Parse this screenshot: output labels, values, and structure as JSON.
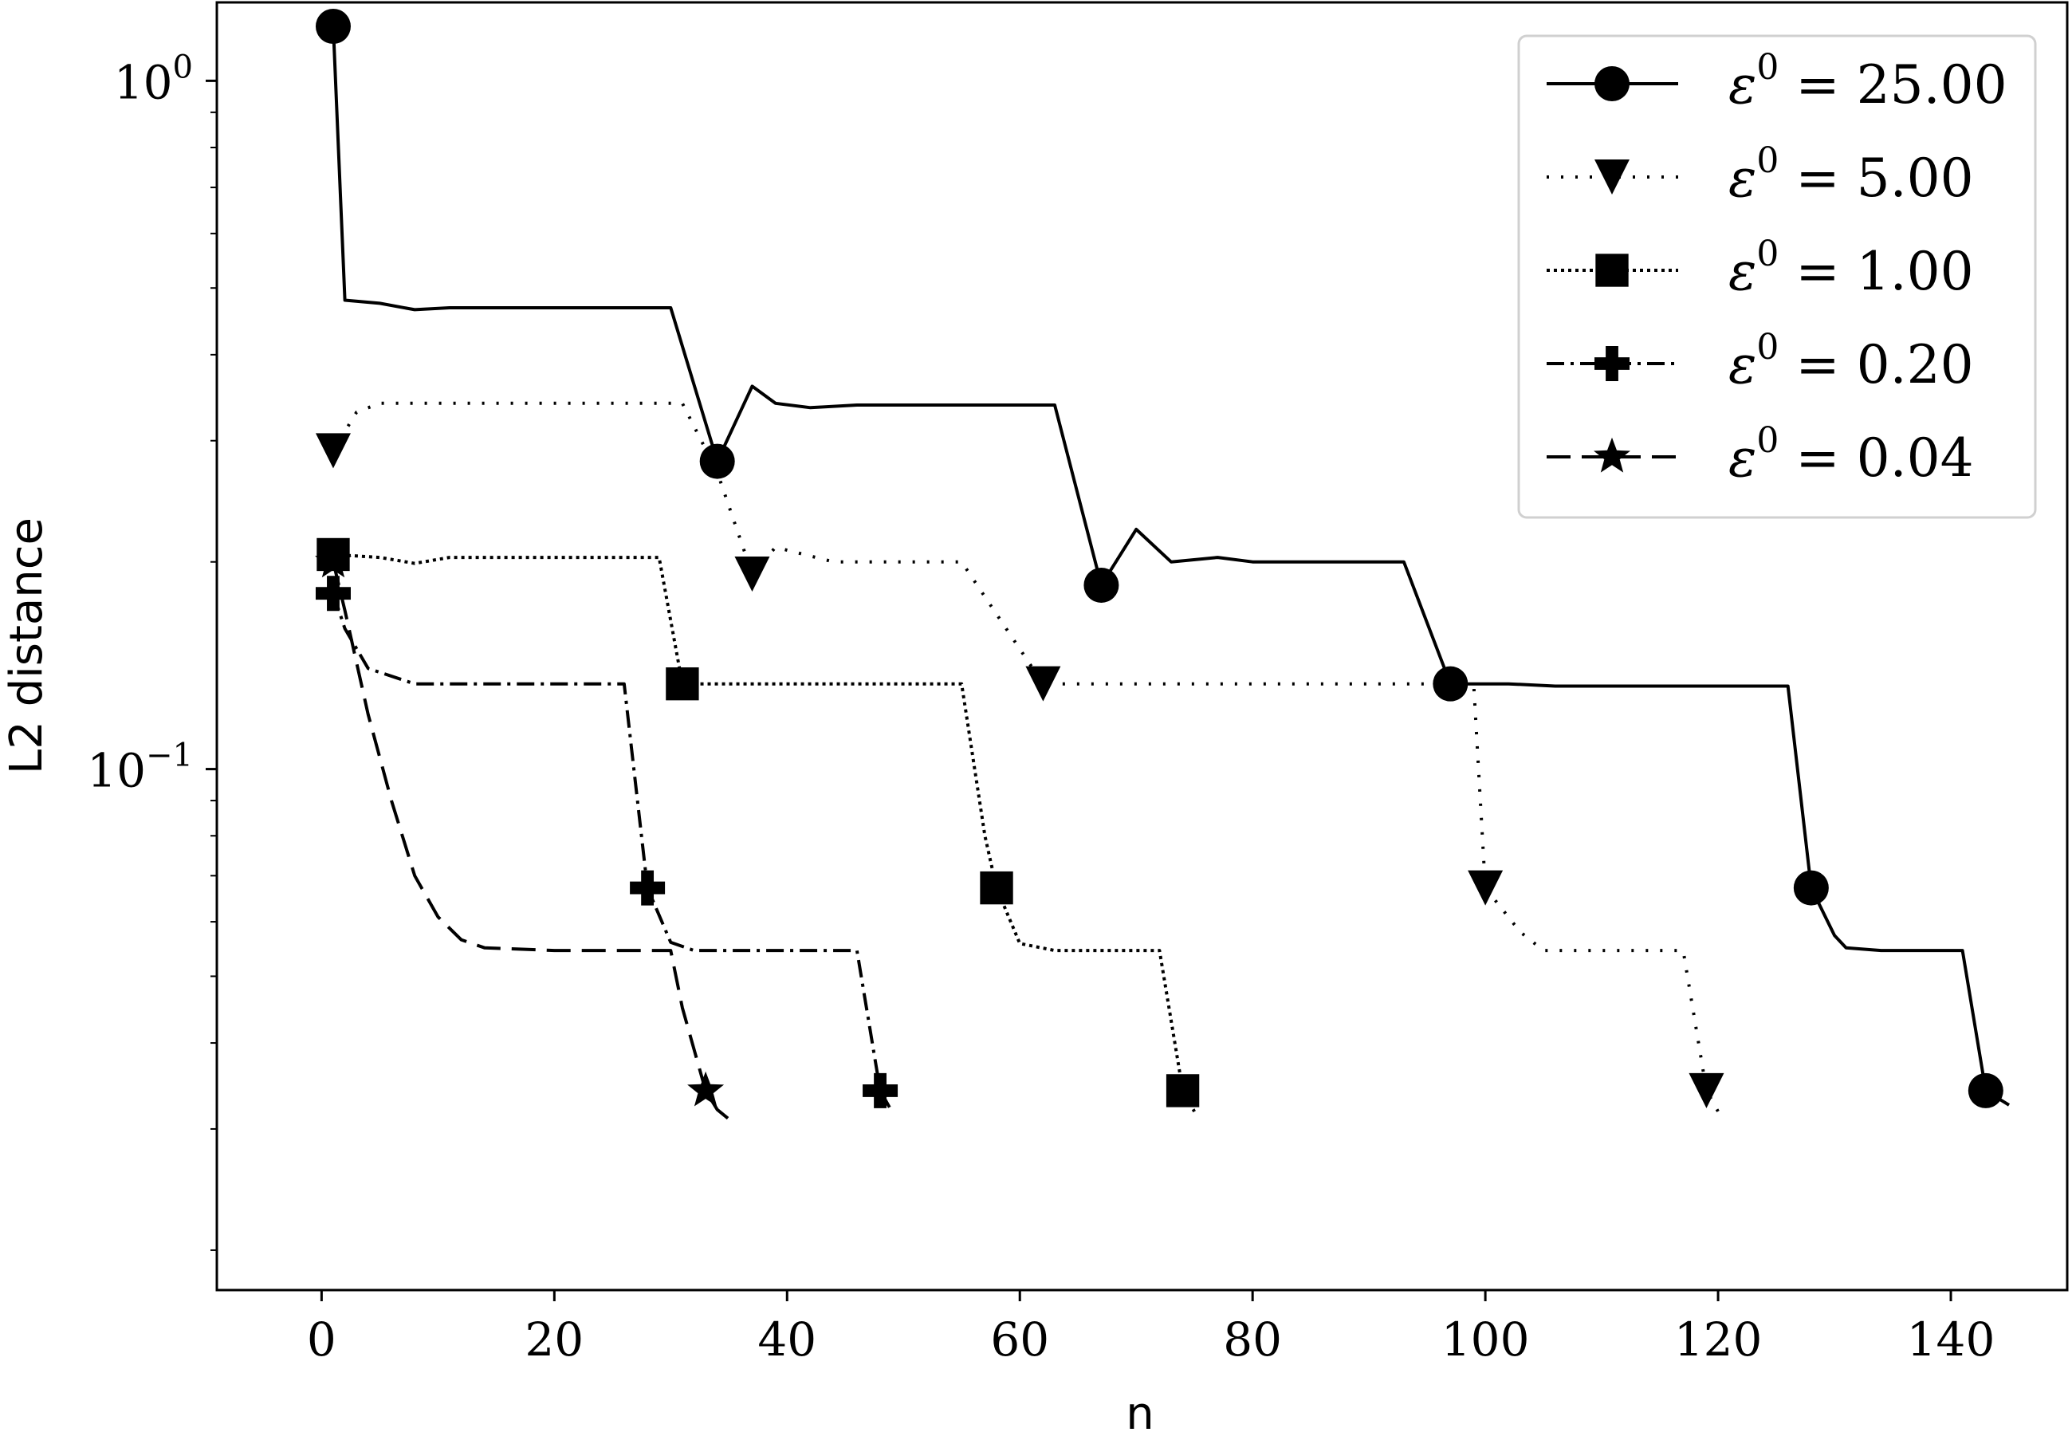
{
  "chart_data": {
    "type": "line",
    "xlabel": "n",
    "ylabel": "L2 distance",
    "xlim": [
      -9,
      150
    ],
    "ylim": [
      0.0175,
      1.3
    ],
    "yscale": "log",
    "xticks": [
      0,
      20,
      40,
      60,
      80,
      100,
      120,
      140
    ],
    "yticks": [
      {
        "value": 1,
        "base": "10",
        "exp": "0"
      },
      {
        "value": 0.1,
        "base": "10",
        "exp": "−1"
      }
    ],
    "grid": false,
    "legend_position": "upper right",
    "series": [
      {
        "name": "ε⁰ = 25.00",
        "legend_label": {
          "sym": "ε",
          "sup": "0",
          "rest": " = 25.00"
        },
        "line": "solid",
        "marker": "circle",
        "x": [
          1,
          2,
          5,
          8,
          11,
          15,
          20,
          25,
          30,
          34,
          37,
          39,
          42,
          46,
          50,
          55,
          60,
          63,
          67,
          70,
          73,
          77,
          80,
          84,
          88,
          93,
          97,
          102,
          106,
          112,
          118,
          126,
          128,
          130,
          131,
          134,
          138,
          141,
          143,
          145
        ],
        "y": [
          1.2,
          0.48,
          0.475,
          0.465,
          0.468,
          0.468,
          0.468,
          0.468,
          0.468,
          0.28,
          0.36,
          0.34,
          0.335,
          0.338,
          0.338,
          0.338,
          0.338,
          0.338,
          0.185,
          0.223,
          0.2,
          0.203,
          0.2,
          0.2,
          0.2,
          0.2,
          0.133,
          0.133,
          0.132,
          0.132,
          0.132,
          0.132,
          0.0672,
          0.0573,
          0.055,
          0.0545,
          0.0545,
          0.0545,
          0.0341,
          0.0325
        ],
        "markers_x": [
          1,
          34,
          67,
          97,
          128,
          143
        ],
        "markers_y": [
          1.2,
          0.28,
          0.185,
          0.133,
          0.0672,
          0.0341
        ]
      },
      {
        "name": "ε⁰ = 5.00",
        "legend_label": {
          "sym": "ε",
          "sup": "0",
          "rest": " = 5.00"
        },
        "line": "dotted",
        "marker": "triangle-down",
        "x": [
          1,
          3,
          5,
          10,
          20,
          31,
          34,
          37,
          39,
          44,
          53,
          55,
          62,
          72,
          82,
          92,
          99,
          100,
          103,
          105,
          110,
          117,
          119,
          120
        ],
        "y": [
          0.29,
          0.33,
          0.34,
          0.34,
          0.34,
          0.34,
          0.27,
          0.192,
          0.21,
          0.2,
          0.2,
          0.2,
          0.133,
          0.133,
          0.133,
          0.133,
          0.133,
          0.0672,
          0.058,
          0.0545,
          0.0545,
          0.0545,
          0.0341,
          0.0318
        ],
        "markers_x": [
          1,
          37,
          62,
          100,
          119
        ],
        "markers_y": [
          0.29,
          0.192,
          0.133,
          0.0672,
          0.0341
        ]
      },
      {
        "name": "ε⁰ = 1.00",
        "legend_label": {
          "sym": "ε",
          "sup": "0",
          "rest": " = 1.00"
        },
        "line": "densely-dotted",
        "marker": "square",
        "x": [
          1,
          5,
          8,
          11,
          20,
          29,
          31,
          35,
          45,
          55,
          57,
          58,
          60,
          63,
          72,
          74,
          75
        ],
        "y": [
          0.205,
          0.203,
          0.199,
          0.203,
          0.203,
          0.203,
          0.133,
          0.133,
          0.133,
          0.133,
          0.08,
          0.0672,
          0.0558,
          0.0545,
          0.0545,
          0.0341,
          0.0318
        ],
        "markers_x": [
          1,
          31,
          58,
          74
        ],
        "markers_y": [
          0.205,
          0.133,
          0.0672,
          0.0341
        ]
      },
      {
        "name": "ε⁰ = 0.20",
        "legend_label": {
          "sym": "ε",
          "sup": "0",
          "rest": " = 0.20"
        },
        "line": "dashdot",
        "marker": "plus",
        "x": [
          1,
          2,
          4,
          8,
          15,
          26,
          28,
          30,
          32,
          40,
          46,
          48,
          49
        ],
        "y": [
          0.18,
          0.16,
          0.14,
          0.133,
          0.133,
          0.133,
          0.0672,
          0.056,
          0.0545,
          0.0545,
          0.0545,
          0.0341,
          0.0318
        ],
        "markers_x": [
          1,
          28,
          48
        ],
        "markers_y": [
          0.18,
          0.0672,
          0.0341
        ]
      },
      {
        "name": "ε⁰ = 0.04",
        "legend_label": {
          "sym": "ε",
          "sup": "0",
          "rest": " = 0.04"
        },
        "line": "dashed",
        "marker": "star",
        "x": [
          1,
          2,
          4,
          6,
          8,
          10,
          12,
          14,
          20,
          30,
          31,
          33,
          34,
          35
        ],
        "y": [
          0.2,
          0.17,
          0.12,
          0.09,
          0.07,
          0.061,
          0.0565,
          0.055,
          0.0545,
          0.0545,
          0.045,
          0.0341,
          0.032,
          0.031
        ],
        "markers_x": [
          1,
          33
        ],
        "markers_y": [
          0.2,
          0.0341
        ]
      }
    ]
  }
}
